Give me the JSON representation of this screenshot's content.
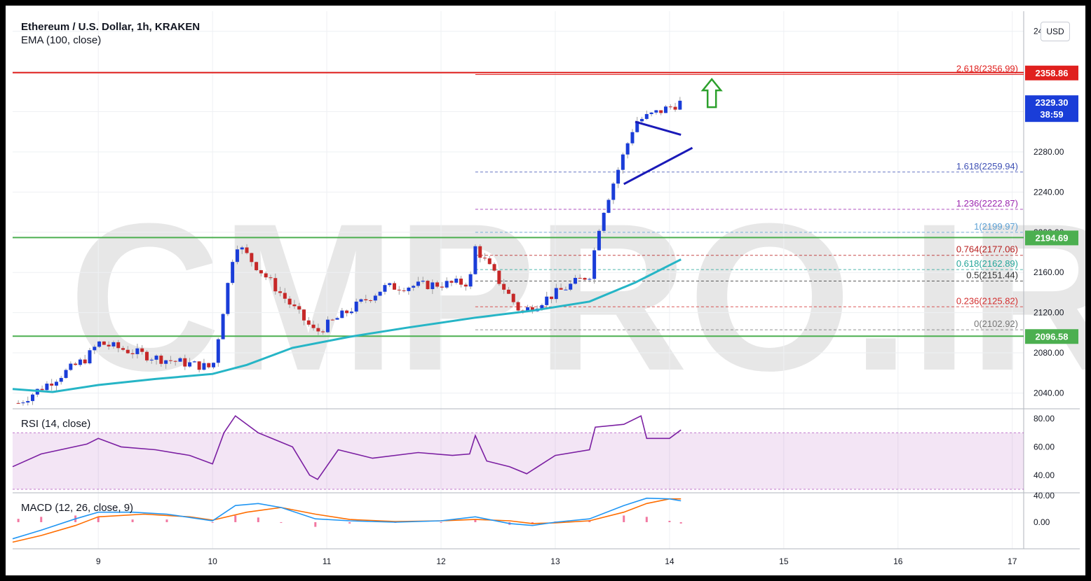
{
  "header": {
    "title": "Ethereum / U.S. Dollar, 1h, KRAKEN",
    "indicator": "EMA (100, close)",
    "currency_button": "USD"
  },
  "watermark": "CMPRO.IR",
  "panes": {
    "rsi_label": "RSI (14, close)",
    "macd_label": "MACD (12, 26, close, 9)"
  },
  "chart_data": {
    "type": "candlestick",
    "title": "Ethereum / U.S. Dollar, 1h, KRAKEN",
    "price_axis": {
      "ticks": [
        "2400.00",
        "2360.00",
        "2320.00",
        "2280.00",
        "2240.00",
        "2200.00",
        "2160.00",
        "2120.00",
        "2080.00",
        "2040.00"
      ],
      "ylim": [
        2025,
        2420
      ]
    },
    "x_axis": {
      "ticks": [
        "9",
        "10",
        "11",
        "12",
        "13",
        "14",
        "15",
        "16",
        "17"
      ],
      "xlim": [
        8.25,
        17.1
      ]
    },
    "ohlc_key_points": [
      {
        "day": 8.3,
        "price": 2030
      },
      {
        "day": 8.9,
        "price": 2075
      },
      {
        "day": 9.0,
        "price": 2090
      },
      {
        "day": 9.5,
        "price": 2075
      },
      {
        "day": 10.0,
        "price": 2065
      },
      {
        "day": 10.2,
        "price": 2190
      },
      {
        "day": 10.9,
        "price": 2100
      },
      {
        "day": 11.5,
        "price": 2145
      },
      {
        "day": 12.25,
        "price": 2150
      },
      {
        "day": 12.3,
        "price": 2185
      },
      {
        "day": 12.7,
        "price": 2120
      },
      {
        "day": 13.3,
        "price": 2158
      },
      {
        "day": 13.4,
        "price": 2215
      },
      {
        "day": 13.7,
        "price": 2310
      },
      {
        "day": 14.1,
        "price": 2329.3
      }
    ],
    "ema100": {
      "label": "EMA (100, close)",
      "color": "#26b5c6",
      "points": [
        [
          8.25,
          2044
        ],
        [
          8.6,
          2041
        ],
        [
          9.0,
          2048
        ],
        [
          9.5,
          2054
        ],
        [
          10.0,
          2059
        ],
        [
          10.3,
          2068
        ],
        [
          10.7,
          2085
        ],
        [
          11.2,
          2096
        ],
        [
          11.7,
          2105
        ],
        [
          12.3,
          2115
        ],
        [
          12.8,
          2122
        ],
        [
          13.3,
          2131
        ],
        [
          13.7,
          2150
        ],
        [
          14.1,
          2173
        ]
      ]
    },
    "horizontal_levels": [
      {
        "value": 2358.86,
        "label": "2358.86",
        "color": "#e0201e"
      },
      {
        "value": 2194.69,
        "label": "2194.69",
        "color": "#4caf50"
      },
      {
        "value": 2096.58,
        "label": "2096.58",
        "color": "#4caf50"
      }
    ],
    "current_price": {
      "value": 2329.3,
      "label": "2329.30",
      "countdown": "38:59",
      "color": "#1a3dd8"
    },
    "fibonacci": [
      {
        "ratio": "2.618",
        "value": 2356.99,
        "label": "2.618(2356.99)",
        "color": "#e0201e"
      },
      {
        "ratio": "1.618",
        "value": 2259.94,
        "label": "1.618(2259.94)",
        "color": "#3f51b5"
      },
      {
        "ratio": "1.236",
        "value": 2222.87,
        "label": "1.236(2222.87)",
        "color": "#9c27b0"
      },
      {
        "ratio": "1",
        "value": 2199.97,
        "label": "1(2199.97)",
        "color": "#5a9fd4"
      },
      {
        "ratio": "0.764",
        "value": 2177.06,
        "label": "0.764(2177.06)",
        "color": "#b71c1c"
      },
      {
        "ratio": "0.618",
        "value": 2162.89,
        "label": "0.618(2162.89)",
        "color": "#26a69a"
      },
      {
        "ratio": "0.5",
        "value": 2151.44,
        "label": "0.5(2151.44)",
        "color": "#333333"
      },
      {
        "ratio": "0.236",
        "value": 2125.82,
        "label": "0.236(2125.82)",
        "color": "#d32f2f"
      },
      {
        "ratio": "0",
        "value": 2102.92,
        "label": "0(2102.92)",
        "color": "#777777"
      }
    ],
    "triangle_pattern": {
      "upper": [
        [
          13.7,
          2310
        ],
        [
          14.1,
          2297
        ]
      ],
      "lower": [
        [
          13.6,
          2248
        ],
        [
          14.2,
          2284
        ]
      ]
    },
    "breakout_arrow": {
      "day": 14.37,
      "price": 2337,
      "color": "#2ca02c"
    },
    "rsi": {
      "label": "RSI (14, close)",
      "ticks": [
        "80.00",
        "60.00",
        "40.00"
      ],
      "ylim": [
        28,
        86
      ],
      "band": [
        30,
        70
      ],
      "points": [
        [
          8.25,
          46
        ],
        [
          8.5,
          55
        ],
        [
          8.9,
          62
        ],
        [
          9.0,
          66
        ],
        [
          9.2,
          60
        ],
        [
          9.5,
          58
        ],
        [
          9.8,
          54
        ],
        [
          10.0,
          48
        ],
        [
          10.1,
          70
        ],
        [
          10.2,
          82
        ],
        [
          10.4,
          70
        ],
        [
          10.7,
          60
        ],
        [
          10.85,
          40
        ],
        [
          10.92,
          37
        ],
        [
          11.1,
          58
        ],
        [
          11.4,
          52
        ],
        [
          11.8,
          56
        ],
        [
          12.1,
          54
        ],
        [
          12.25,
          55
        ],
        [
          12.3,
          68
        ],
        [
          12.4,
          50
        ],
        [
          12.6,
          46
        ],
        [
          12.75,
          41
        ],
        [
          13.0,
          54
        ],
        [
          13.3,
          58
        ],
        [
          13.35,
          74
        ],
        [
          13.6,
          76
        ],
        [
          13.75,
          82
        ],
        [
          13.8,
          66
        ],
        [
          14.0,
          66
        ],
        [
          14.1,
          72
        ]
      ]
    },
    "macd": {
      "label": "MACD (12, 26, close, 9)",
      "ticks": [
        "40.00",
        "0.00"
      ],
      "ylim": [
        -40,
        42
      ],
      "macd_color": "#2196f3",
      "signal_color": "#ff6d00",
      "hist_color": "#e91e63",
      "macd_line": [
        [
          8.25,
          -25
        ],
        [
          8.5,
          -12
        ],
        [
          8.8,
          5
        ],
        [
          9.0,
          15
        ],
        [
          9.3,
          15
        ],
        [
          9.6,
          12
        ],
        [
          10.0,
          2
        ],
        [
          10.2,
          25
        ],
        [
          10.4,
          28
        ],
        [
          10.6,
          22
        ],
        [
          10.9,
          5
        ],
        [
          11.2,
          2
        ],
        [
          11.6,
          0
        ],
        [
          12.0,
          2
        ],
        [
          12.3,
          8
        ],
        [
          12.6,
          -2
        ],
        [
          12.8,
          -5
        ],
        [
          13.0,
          0
        ],
        [
          13.3,
          5
        ],
        [
          13.6,
          25
        ],
        [
          13.8,
          36
        ],
        [
          14.0,
          35
        ],
        [
          14.1,
          32
        ]
      ],
      "signal_line": [
        [
          8.25,
          -30
        ],
        [
          8.5,
          -20
        ],
        [
          8.8,
          -5
        ],
        [
          9.0,
          8
        ],
        [
          9.4,
          12
        ],
        [
          9.8,
          8
        ],
        [
          10.0,
          3
        ],
        [
          10.3,
          15
        ],
        [
          10.6,
          22
        ],
        [
          10.9,
          12
        ],
        [
          11.2,
          4
        ],
        [
          11.6,
          1
        ],
        [
          12.0,
          2
        ],
        [
          12.3,
          4
        ],
        [
          12.6,
          2
        ],
        [
          12.8,
          -2
        ],
        [
          13.0,
          -1
        ],
        [
          13.3,
          2
        ],
        [
          13.6,
          15
        ],
        [
          13.8,
          28
        ],
        [
          14.0,
          35
        ],
        [
          14.1,
          35
        ]
      ],
      "histogram": [
        [
          8.3,
          5
        ],
        [
          8.5,
          8
        ],
        [
          8.8,
          10
        ],
        [
          9.0,
          8
        ],
        [
          9.3,
          4
        ],
        [
          9.6,
          4
        ],
        [
          10.0,
          -1
        ],
        [
          10.2,
          10
        ],
        [
          10.4,
          7
        ],
        [
          10.6,
          -1
        ],
        [
          10.9,
          -7
        ],
        [
          11.2,
          -2
        ],
        [
          11.6,
          -1
        ],
        [
          12.0,
          0
        ],
        [
          12.3,
          4
        ],
        [
          12.6,
          -4
        ],
        [
          12.8,
          -3
        ],
        [
          13.0,
          1
        ],
        [
          13.3,
          3
        ],
        [
          13.6,
          10
        ],
        [
          13.8,
          8
        ],
        [
          14.0,
          2
        ],
        [
          14.1,
          -2
        ]
      ]
    }
  }
}
